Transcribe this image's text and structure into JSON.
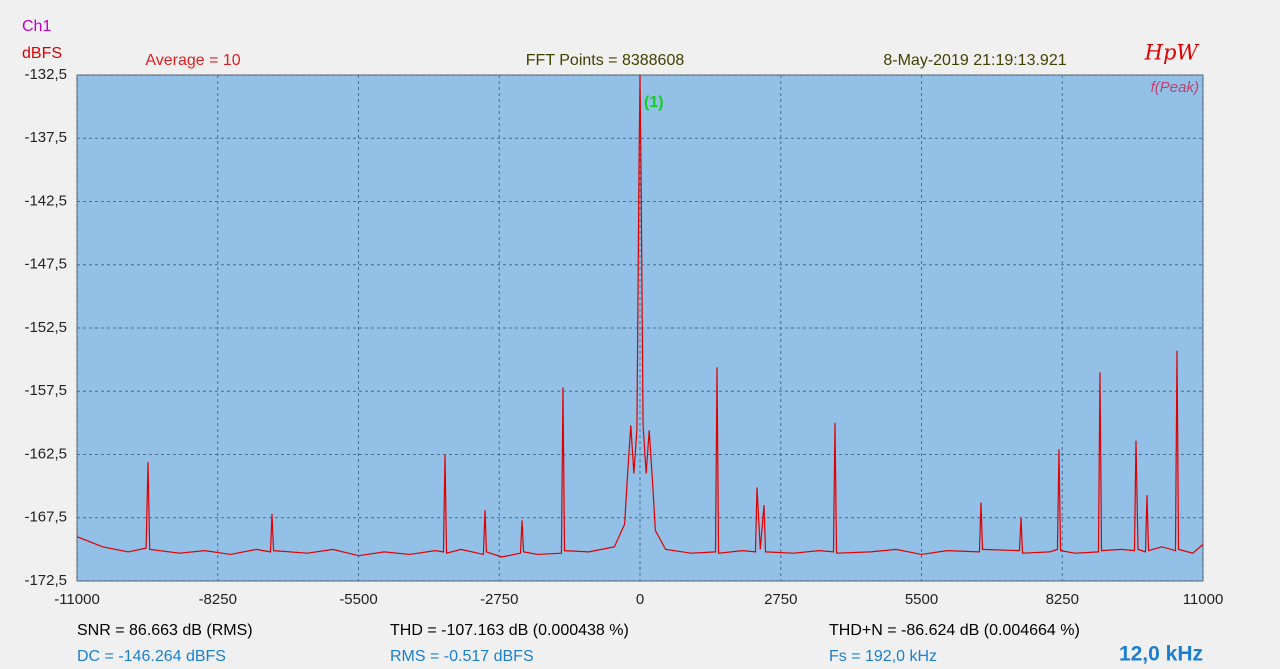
{
  "chart_data": {
    "type": "line",
    "channel": "Ch1",
    "ylabel": "dBFS",
    "header": [
      "Average = 10",
      "FFT Points = 8388608",
      "8-May-2019 21:19:13.921"
    ],
    "logo": "HpW",
    "mode": "f(Peak)",
    "marker_label": "(1)",
    "stats": [
      "SNR = 86.663 dB (RMS)",
      "THD = -107.163 dB (0.000438 %)",
      "THD+N = -86.624 dB (0.004664 %)",
      "DC = -146.264 dBFS",
      "RMS = -0.517 dBFS",
      "Fs = 192,0 kHz"
    ],
    "corner_label": "12,0 kHz",
    "xlim": [
      -11000,
      11000
    ],
    "xticks": [
      -11000,
      -8250,
      -5500,
      -2750,
      0,
      2750,
      5500,
      8250,
      11000
    ],
    "ylim": [
      -172.5,
      -132.5
    ],
    "yticks": [
      {
        "value": -132.5,
        "label": "-132,5"
      },
      {
        "value": -137.5,
        "label": "-137,5"
      },
      {
        "value": -142.5,
        "label": "-142,5"
      },
      {
        "value": -147.5,
        "label": "-147,5"
      },
      {
        "value": -152.5,
        "label": "-152,5"
      },
      {
        "value": -157.5,
        "label": "-157,5"
      },
      {
        "value": -162.5,
        "label": "-162,5"
      },
      {
        "value": -167.5,
        "label": "-167,5"
      },
      {
        "value": -172.5,
        "label": "-172,5"
      }
    ],
    "grid": true,
    "series": [
      {
        "color": "#e00000",
        "x": [
          -11000,
          -10500,
          -10000,
          -9650,
          -9613,
          -9580,
          -9000,
          -8500,
          -8000,
          -7500,
          -7220,
          -7190,
          -7160,
          -6500,
          -6000,
          -5500,
          -5000,
          -4500,
          -4000,
          -3840,
          -3810,
          -3780,
          -3500,
          -3060,
          -3028,
          -3000,
          -2700,
          -2335,
          -2305,
          -2275,
          -2000,
          -1535,
          -1505,
          -1475,
          -1000,
          -500,
          -300,
          -250,
          -180,
          -120,
          -60,
          -20,
          0,
          20,
          60,
          120,
          180,
          250,
          300,
          500,
          1000,
          1475,
          1505,
          1535,
          2000,
          2256,
          2286,
          2350,
          2423,
          2453,
          3000,
          3500,
          3780,
          3810,
          3840,
          4500,
          5000,
          5500,
          6000,
          6632,
          6662,
          6692,
          7414,
          7444,
          7474,
          8000,
          8156,
          8186,
          8216,
          8500,
          8957,
          8987,
          9017,
          9400,
          9661,
          9691,
          9730,
          9876,
          9906,
          9936,
          10200,
          10462,
          10492,
          10522,
          10800,
          11000
        ],
        "values": [
          -169.0,
          -169.8,
          -170.2,
          -169.9,
          -163.1,
          -170.0,
          -170.3,
          -170.1,
          -170.4,
          -170.0,
          -170.2,
          -167.2,
          -170.1,
          -170.3,
          -170.0,
          -170.5,
          -170.2,
          -170.4,
          -170.1,
          -170.2,
          -162.5,
          -170.3,
          -170.0,
          -170.4,
          -166.9,
          -170.2,
          -170.6,
          -170.3,
          -167.7,
          -170.2,
          -170.4,
          -170.3,
          -157.2,
          -170.1,
          -170.2,
          -169.8,
          -168.0,
          -164.5,
          -160.2,
          -164.0,
          -160.5,
          -140.0,
          -132.5,
          -140.0,
          -160.2,
          -164.0,
          -160.6,
          -165.0,
          -168.5,
          -170.0,
          -170.3,
          -170.2,
          -155.6,
          -170.3,
          -170.1,
          -170.2,
          -165.1,
          -170.0,
          -166.5,
          -170.2,
          -170.3,
          -170.1,
          -170.2,
          -160.0,
          -170.3,
          -170.2,
          -170.0,
          -170.4,
          -170.1,
          -170.2,
          -166.3,
          -170.0,
          -170.1,
          -167.5,
          -170.3,
          -170.2,
          -170.0,
          -162.1,
          -170.1,
          -170.3,
          -170.2,
          -156.0,
          -170.1,
          -170.0,
          -170.1,
          -161.4,
          -170.0,
          -170.2,
          -165.7,
          -170.1,
          -169.8,
          -170.1,
          -154.3,
          -170.0,
          -170.3,
          -169.6
        ]
      }
    ]
  }
}
